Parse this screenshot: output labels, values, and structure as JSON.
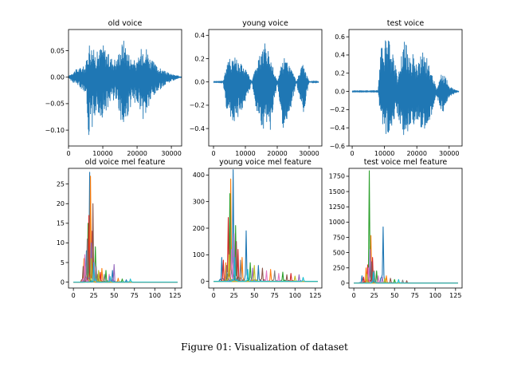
{
  "figure": {
    "caption": "Figure 01: Visualization of dataset"
  },
  "colors": {
    "wave": "#1f77b4",
    "mel_series": [
      "#1f77b4",
      "#ff7f0e",
      "#2ca02c",
      "#d62728",
      "#9467bd",
      "#8c564b",
      "#e377c2",
      "#7f7f7f",
      "#bcbd22",
      "#17becf"
    ]
  },
  "chart_data": [
    {
      "type": "line",
      "title": "old voice",
      "xlim": [
        0,
        33000
      ],
      "ylim": [
        -0.13,
        0.09
      ],
      "xticks": [
        0,
        10000,
        20000,
        30000
      ],
      "xtick_labels": [
        "0",
        "10000",
        "20000",
        "30000"
      ],
      "yticks": [
        -0.1,
        -0.05,
        0.0,
        0.05
      ],
      "ytick_labels": [
        "−0.10",
        "−0.05",
        "0.00",
        "0.05"
      ],
      "envelope": {
        "x": [
          0,
          1500,
          3000,
          5000,
          6000,
          8000,
          10000,
          12000,
          14000,
          16000,
          18000,
          20000,
          22000,
          24000,
          26000,
          28000,
          30000,
          32000,
          33000
        ],
        "upper": [
          0.002,
          0.012,
          0.018,
          0.022,
          0.07,
          0.045,
          0.065,
          0.04,
          0.035,
          0.075,
          0.04,
          0.028,
          0.072,
          0.035,
          0.02,
          0.012,
          0.006,
          0.003,
          0.002
        ],
        "lower": [
          -0.002,
          -0.012,
          -0.018,
          -0.03,
          -0.12,
          -0.07,
          -0.08,
          -0.05,
          -0.04,
          -0.11,
          -0.06,
          -0.045,
          -0.09,
          -0.05,
          -0.03,
          -0.015,
          -0.008,
          -0.003,
          -0.002
        ]
      }
    },
    {
      "type": "line",
      "title": "young voice",
      "xlim": [
        -1500,
        34000
      ],
      "ylim": [
        -0.55,
        0.45
      ],
      "xticks": [
        0,
        10000,
        20000,
        30000
      ],
      "xtick_labels": [
        "0",
        "10000",
        "20000",
        "30000"
      ],
      "yticks": [
        -0.4,
        -0.2,
        0.0,
        0.2,
        0.4
      ],
      "ytick_labels": [
        "−0.4",
        "−0.2",
        "0.0",
        "0.2",
        "0.4"
      ],
      "envelope": {
        "x": [
          0,
          1500,
          3000,
          4000,
          6000,
          8000,
          10000,
          12000,
          14000,
          16000,
          18000,
          20000,
          22000,
          24000,
          26000,
          28000,
          30000,
          32000,
          33000
        ],
        "upper": [
          0.003,
          0.003,
          0.004,
          0.15,
          0.25,
          0.2,
          0.12,
          0.006,
          0.2,
          0.35,
          0.2,
          0.006,
          0.22,
          0.15,
          0.005,
          0.16,
          0.006,
          0.003,
          0.003
        ],
        "lower": [
          -0.003,
          -0.003,
          -0.004,
          -0.25,
          -0.37,
          -0.3,
          -0.2,
          -0.006,
          -0.35,
          -0.52,
          -0.42,
          -0.006,
          -0.45,
          -0.3,
          -0.005,
          -0.3,
          -0.006,
          -0.003,
          -0.003
        ]
      }
    },
    {
      "type": "line",
      "title": "test voice",
      "xlim": [
        -1000,
        34000
      ],
      "ylim": [
        -0.6,
        0.68
      ],
      "xticks": [
        0,
        10000,
        20000,
        30000
      ],
      "xtick_labels": [
        "0",
        "10000",
        "20000",
        "30000"
      ],
      "yticks": [
        -0.6,
        -0.4,
        -0.2,
        0.0,
        0.2,
        0.4,
        0.6
      ],
      "ytick_labels": [
        "−0.6",
        "−0.4",
        "−0.2",
        "0.0",
        "0.2",
        "0.4",
        "0.6"
      ],
      "envelope": {
        "x": [
          0,
          4000,
          6000,
          8000,
          9000,
          11000,
          12500,
          14000,
          16000,
          18000,
          20000,
          22000,
          24000,
          26000,
          28000,
          30000,
          32000,
          33000
        ],
        "upper": [
          0.004,
          0.004,
          0.004,
          0.005,
          0.5,
          0.6,
          0.45,
          0.2,
          0.55,
          0.5,
          0.3,
          0.45,
          0.3,
          0.04,
          0.25,
          0.06,
          0.02,
          0.004
        ],
        "lower": [
          -0.004,
          -0.004,
          -0.004,
          -0.005,
          -0.4,
          -0.5,
          -0.35,
          -0.25,
          -0.5,
          -0.45,
          -0.3,
          -0.45,
          -0.35,
          -0.04,
          -0.25,
          -0.06,
          -0.02,
          -0.004
        ]
      }
    },
    {
      "type": "line",
      "title": "old voice mel feature",
      "xlim": [
        -6,
        133
      ],
      "ylim": [
        -1.5,
        29
      ],
      "xticks": [
        0,
        25,
        50,
        75,
        100,
        125
      ],
      "xtick_labels": [
        "0",
        "25",
        "50",
        "75",
        "100",
        "125"
      ],
      "yticks": [
        0,
        5,
        10,
        15,
        20,
        25
      ],
      "ytick_labels": [
        "0",
        "5",
        "10",
        "15",
        "20",
        "25"
      ],
      "series": [
        {
          "peaks": [
            [
              20,
              28
            ],
            [
              16,
              8
            ],
            [
              48,
              3
            ],
            [
              65,
              0.6
            ]
          ]
        },
        {
          "peaks": [
            [
              21,
              27
            ],
            [
              13,
              6
            ],
            [
              35,
              3.5
            ],
            [
              55,
              1
            ]
          ]
        },
        {
          "peaks": [
            [
              18,
              15
            ],
            [
              27,
              9
            ],
            [
              40,
              3
            ],
            [
              60,
              0.8
            ]
          ]
        },
        {
          "peaks": [
            [
              19,
              17
            ],
            [
              23,
              13
            ],
            [
              33,
              2.5
            ]
          ]
        },
        {
          "peaks": [
            [
              50,
              4.5
            ],
            [
              22,
              10
            ],
            [
              15,
              4
            ]
          ]
        },
        {
          "peaks": [
            [
              24,
              20
            ],
            [
              12,
              4
            ],
            [
              30,
              2
            ]
          ]
        },
        {
          "peaks": [
            [
              14,
              7
            ],
            [
              26,
              5
            ],
            [
              44,
              2
            ]
          ]
        },
        {
          "peaks": [
            [
              17,
              11
            ],
            [
              28,
              4
            ],
            [
              38,
              2
            ]
          ]
        },
        {
          "peaks": [
            [
              22,
              6
            ],
            [
              31,
              3
            ]
          ]
        },
        {
          "peaks": [
            [
              25,
              5
            ],
            [
              45,
              1.5
            ],
            [
              70,
              0.8
            ]
          ]
        }
      ]
    },
    {
      "type": "line",
      "title": "young voice mel feature",
      "xlim": [
        -6,
        133
      ],
      "ylim": [
        -25,
        425
      ],
      "xticks": [
        0,
        25,
        50,
        75,
        100,
        125
      ],
      "xtick_labels": [
        "0",
        "25",
        "50",
        "75",
        "100",
        "125"
      ],
      "yticks": [
        0,
        100,
        200,
        300,
        400
      ],
      "ytick_labels": [
        "0",
        "100",
        "200",
        "300",
        "400"
      ],
      "series": [
        {
          "peaks": [
            [
              24,
              420
            ],
            [
              10,
              90
            ],
            [
              40,
              190
            ],
            [
              55,
              60
            ]
          ]
        },
        {
          "peaks": [
            [
              21,
              385
            ],
            [
              15,
              70
            ],
            [
              35,
              90
            ],
            [
              70,
              45
            ]
          ]
        },
        {
          "peaks": [
            [
              20,
              330
            ],
            [
              27,
              210
            ],
            [
              45,
              70
            ],
            [
              85,
              35
            ]
          ]
        },
        {
          "peaks": [
            [
              18,
              240
            ],
            [
              12,
              80
            ],
            [
              30,
              120
            ],
            [
              95,
              30
            ]
          ]
        },
        {
          "peaks": [
            [
              25,
              180
            ],
            [
              48,
              50
            ],
            [
              105,
              25
            ]
          ]
        },
        {
          "peaks": [
            [
              28,
              150
            ],
            [
              60,
              50
            ],
            [
              90,
              25
            ]
          ]
        },
        {
          "peaks": [
            [
              22,
              120
            ],
            [
              65,
              40
            ],
            [
              80,
              30
            ]
          ]
        },
        {
          "peaks": [
            [
              16,
              60
            ],
            [
              33,
              80
            ],
            [
              75,
              40
            ]
          ]
        },
        {
          "peaks": [
            [
              19,
              100
            ],
            [
              50,
              60
            ],
            [
              100,
              20
            ]
          ]
        },
        {
          "peaks": [
            [
              26,
              90
            ],
            [
              42,
              45
            ],
            [
              110,
              15
            ]
          ]
        }
      ]
    },
    {
      "type": "line",
      "title": "test voice mel feature",
      "xlim": [
        -6,
        133
      ],
      "ylim": [
        -80,
        1880
      ],
      "xticks": [
        0,
        25,
        50,
        75,
        100,
        125
      ],
      "xtick_labels": [
        "0",
        "25",
        "50",
        "75",
        "100",
        "125"
      ],
      "yticks": [
        0,
        250,
        500,
        750,
        1000,
        1250,
        1500,
        1750
      ],
      "ytick_labels": [
        "0",
        "250",
        "500",
        "750",
        "1000",
        "1250",
        "1500",
        "1750"
      ],
      "series": [
        {
          "peaks": [
            [
              36,
              920
            ],
            [
              20,
              600
            ],
            [
              10,
              120
            ]
          ]
        },
        {
          "peaks": [
            [
              21,
              780
            ],
            [
              15,
              250
            ],
            [
              40,
              120
            ]
          ]
        },
        {
          "peaks": [
            [
              19,
              1840
            ],
            [
              28,
              200
            ],
            [
              50,
              60
            ]
          ]
        },
        {
          "peaks": [
            [
              17,
              300
            ],
            [
              23,
              420
            ],
            [
              12,
              100
            ]
          ]
        },
        {
          "peaks": [
            [
              20,
              550
            ],
            [
              35,
              100
            ]
          ]
        },
        {
          "peaks": [
            [
              22,
              350
            ],
            [
              45,
              80
            ],
            [
              65,
              40
            ]
          ]
        },
        {
          "peaks": [
            [
              18,
              250
            ],
            [
              30,
              120
            ]
          ]
        },
        {
          "peaks": [
            [
              25,
              200
            ],
            [
              60,
              50
            ]
          ]
        },
        {
          "peaks": [
            [
              16,
              150
            ],
            [
              38,
              80
            ]
          ]
        },
        {
          "peaks": [
            [
              24,
              180
            ],
            [
              55,
              60
            ]
          ]
        }
      ]
    }
  ]
}
